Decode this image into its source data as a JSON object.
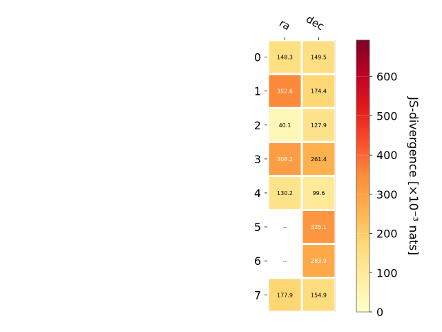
{
  "chart_data": {
    "type": "heatmap",
    "columns": [
      "ra",
      "dec"
    ],
    "rows": [
      "0",
      "1",
      "2",
      "3",
      "4",
      "5",
      "6",
      "7"
    ],
    "values": [
      [
        148.3,
        149.5
      ],
      [
        352.6,
        174.4
      ],
      [
        40.1,
        127.9
      ],
      [
        308.2,
        261.4
      ],
      [
        130.2,
        99.6
      ],
      [
        null,
        325.1
      ],
      [
        null,
        283.9
      ],
      [
        177.9,
        154.9
      ]
    ],
    "cell_labels": [
      [
        "148.3",
        "149.5"
      ],
      [
        "352.6",
        "174.4"
      ],
      [
        "40.1",
        "127.9"
      ],
      [
        "308.2",
        "261.4"
      ],
      [
        "130.2",
        "99.6"
      ],
      [
        "--",
        "325.1"
      ],
      [
        "--",
        "283.9"
      ],
      [
        "177.9",
        "154.9"
      ]
    ],
    "colorbar": {
      "label": "JS-divergence [×10⁻³ nats]",
      "ticks": [
        0,
        100,
        200,
        300,
        400,
        500,
        600
      ],
      "range": [
        0,
        693
      ],
      "colormap": "YlOrRd"
    },
    "missing_color": "#ffffff",
    "grid": false
  }
}
